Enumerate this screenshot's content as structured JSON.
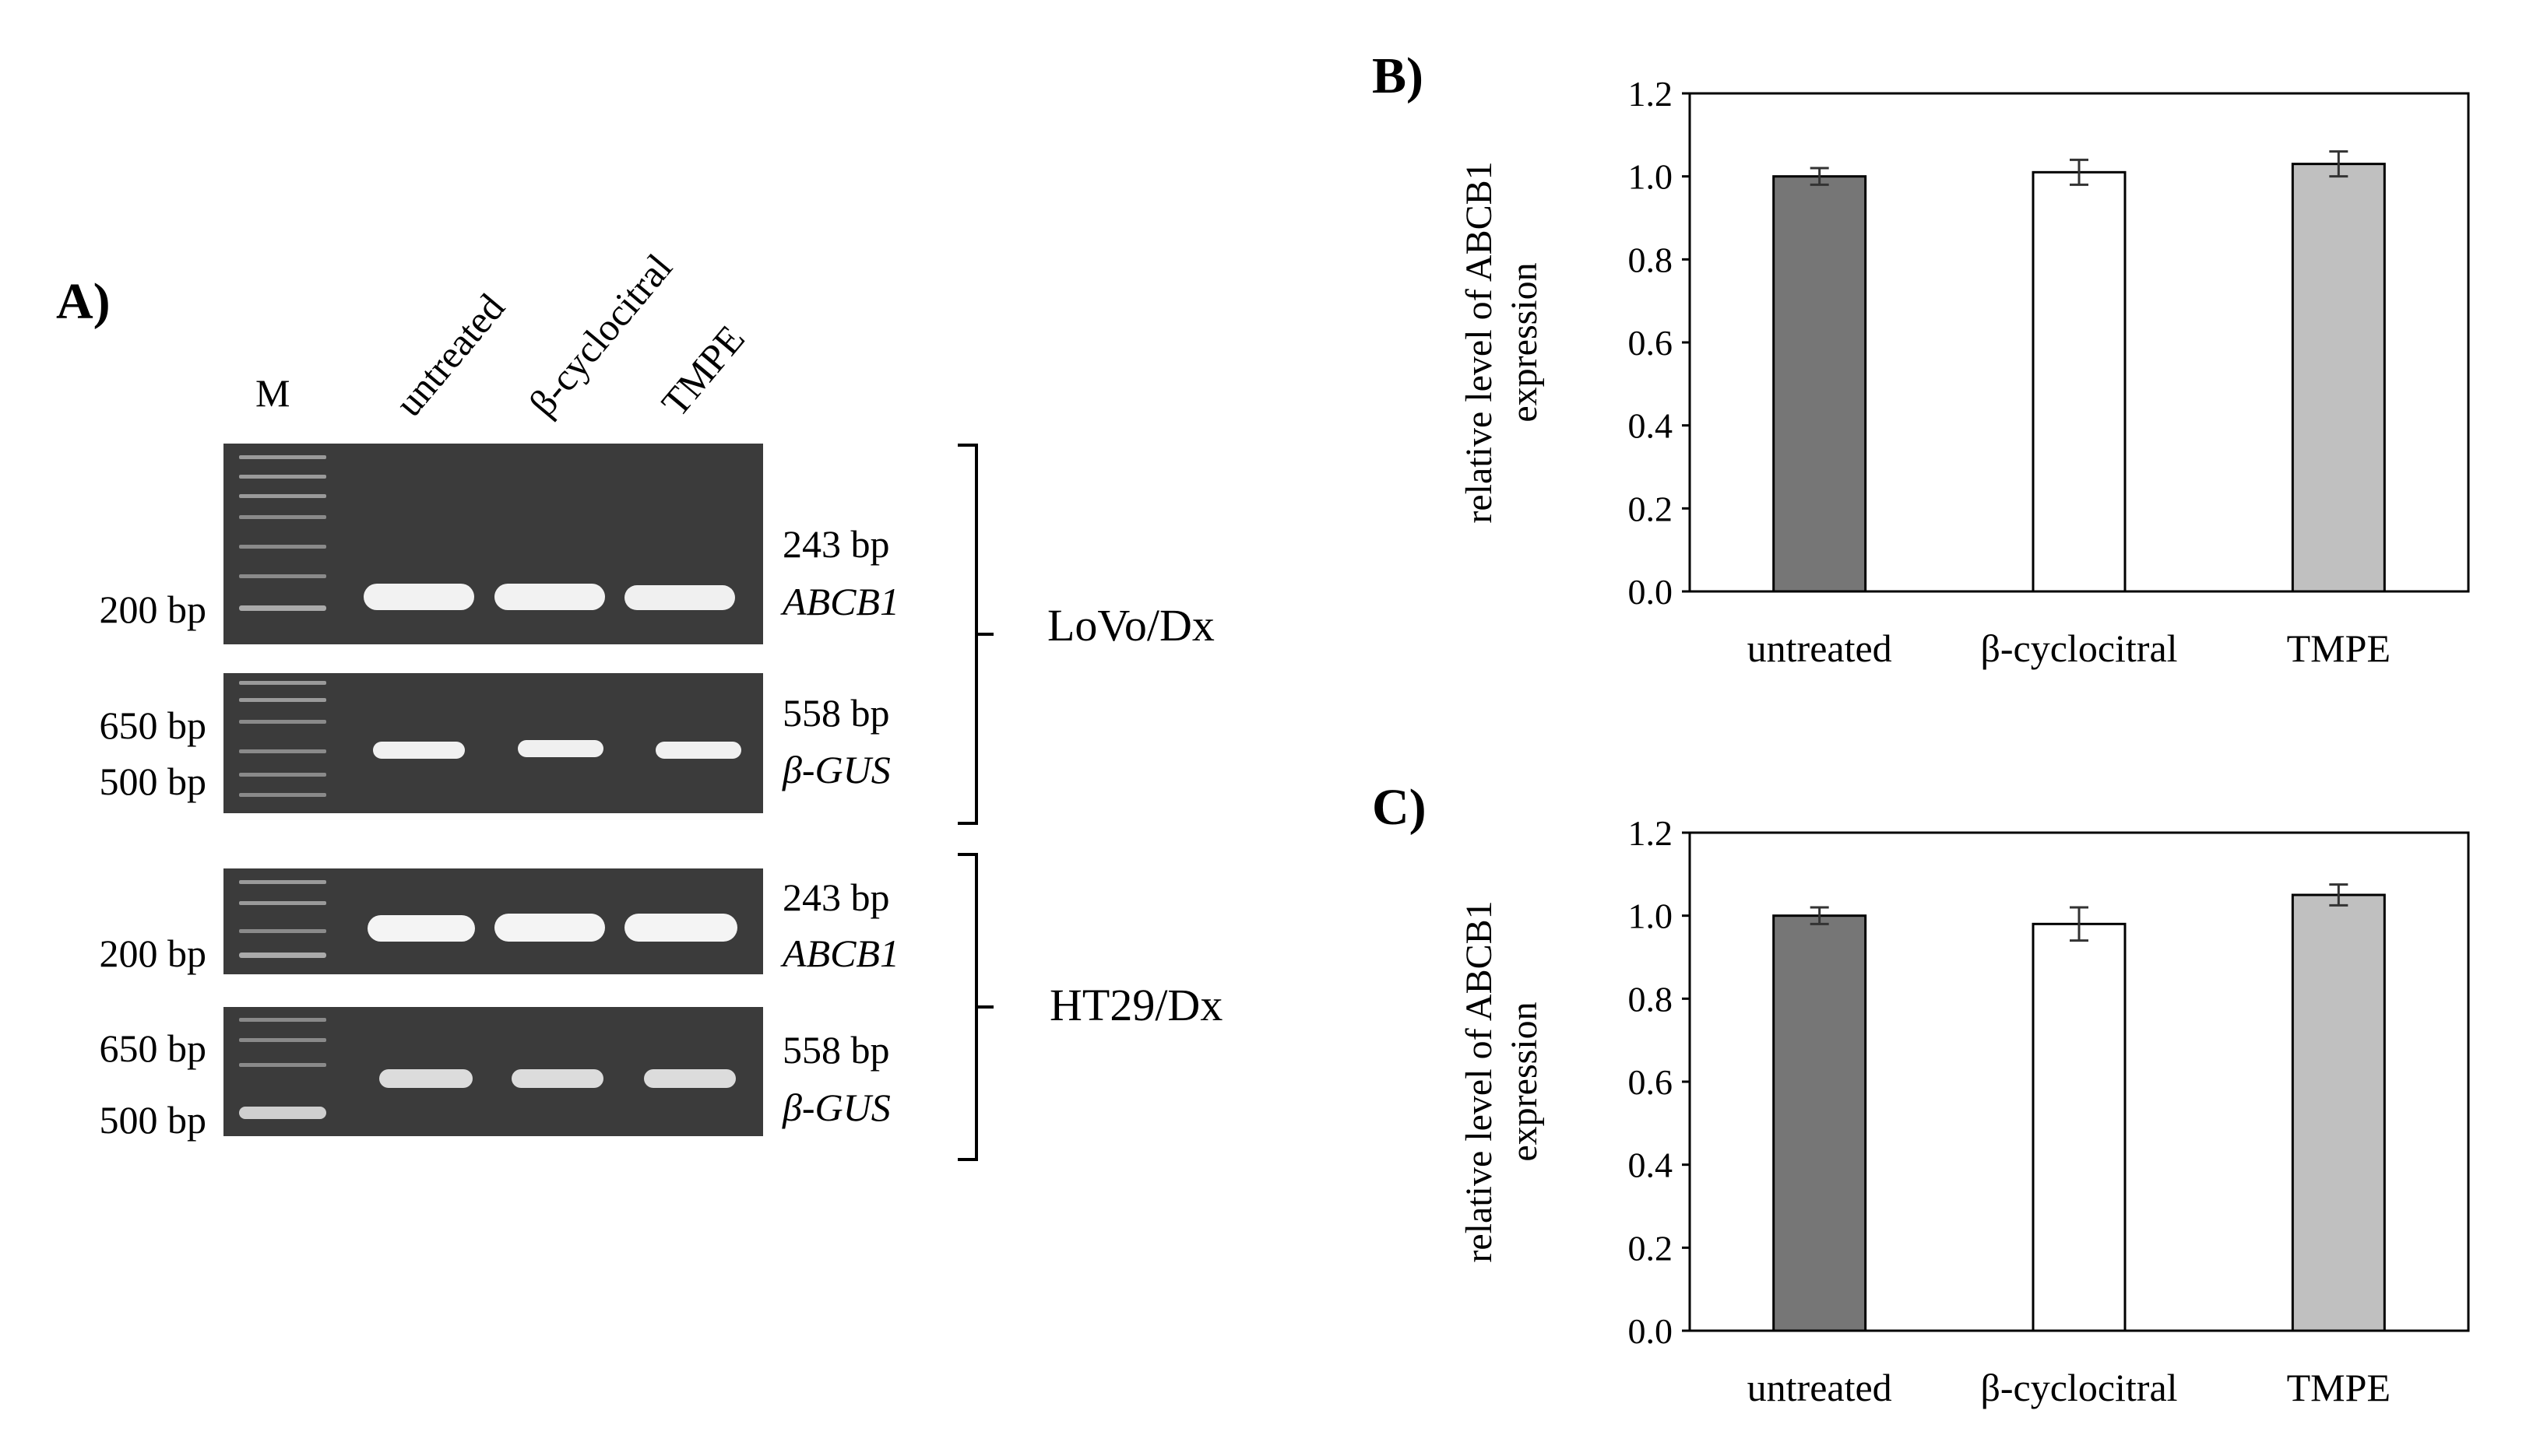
{
  "panel_a": {
    "label": "A)",
    "marker_lane": "M",
    "lanes": [
      "untreated",
      "β-cyclocitral",
      "TMPE"
    ],
    "groups": [
      {
        "cell_line": "LoVo/Dx",
        "gels": [
          {
            "gene": "ABCB1",
            "size": "243 bp",
            "markers": [
              "200 bp"
            ]
          },
          {
            "gene": "β-GUS",
            "size": "558 bp",
            "markers": [
              "650 bp",
              "500 bp"
            ]
          }
        ]
      },
      {
        "cell_line": "HT29/Dx",
        "gels": [
          {
            "gene": "ABCB1",
            "size": "243 bp",
            "markers": [
              "200 bp"
            ]
          },
          {
            "gene": "β-GUS",
            "size": "558 bp",
            "markers": [
              "650 bp",
              "500 bp"
            ]
          }
        ]
      }
    ]
  },
  "chart_data": [
    {
      "type": "bar",
      "panel_label": "B)",
      "categories": [
        "untreated",
        "β-cyclocitral",
        "TMPE"
      ],
      "values": [
        1.0,
        1.01,
        1.03
      ],
      "errors": [
        0.02,
        0.03,
        0.03
      ],
      "bar_colors": [
        "#767676",
        "#ffffff",
        "#c0c0c0"
      ],
      "ylabel_lines": [
        "relative level of ABCB1",
        "expression"
      ],
      "ylim": [
        0,
        1.2
      ],
      "yticks": [
        "0.0",
        "0.2",
        "0.4",
        "0.6",
        "0.8",
        "1.0",
        "1.2"
      ],
      "grid": false
    },
    {
      "type": "bar",
      "panel_label": "C)",
      "categories": [
        "untreated",
        "β-cyclocitral",
        "TMPE"
      ],
      "values": [
        1.0,
        0.98,
        1.05
      ],
      "errors": [
        0.02,
        0.04,
        0.025
      ],
      "bar_colors": [
        "#767676",
        "#ffffff",
        "#c0c0c0"
      ],
      "ylabel_lines": [
        "relative level of ABCB1",
        "expression"
      ],
      "ylim": [
        0,
        1.2
      ],
      "yticks": [
        "0.0",
        "0.2",
        "0.4",
        "0.6",
        "0.8",
        "1.0",
        "1.2"
      ],
      "grid": false
    }
  ]
}
